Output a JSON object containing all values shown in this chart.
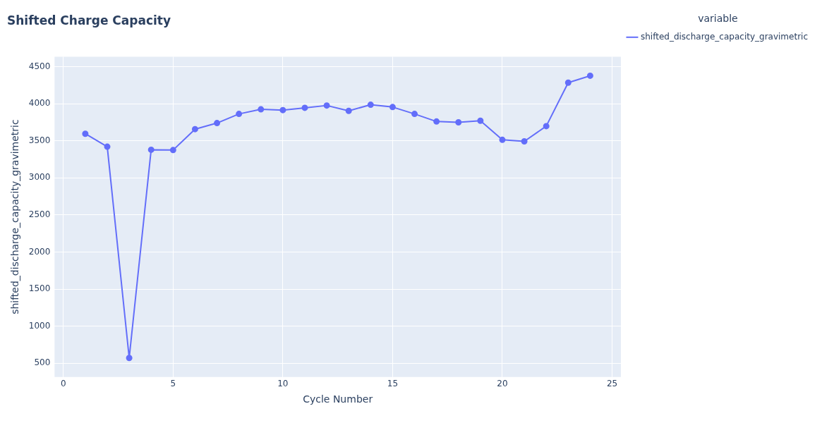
{
  "chart_data": {
    "type": "line",
    "title": "Shifted Charge Capacity",
    "xlabel": "Cycle Number",
    "ylabel": "shifted_discharge_capacity_gravimetric",
    "legend_title": "variable",
    "x": [
      1,
      2,
      3,
      4,
      5,
      6,
      7,
      8,
      9,
      10,
      11,
      12,
      13,
      14,
      15,
      16,
      17,
      18,
      19,
      20,
      21,
      22,
      23,
      24
    ],
    "series": [
      {
        "name": "shifted_discharge_capacity_gravimetric",
        "color": "#636efa",
        "values": [
          3595,
          3420,
          572,
          3379,
          3375,
          3657,
          3739,
          3862,
          3924,
          3914,
          3945,
          3976,
          3904,
          3986,
          3955,
          3862,
          3760,
          3749,
          3770,
          3513,
          3492,
          3698,
          4284,
          4377
        ]
      }
    ],
    "xlim": [
      -0.4,
      25.4
    ],
    "ylim": [
      315,
      4634
    ],
    "xticks": [
      0,
      5,
      10,
      15,
      20,
      25
    ],
    "yticks": [
      500,
      1000,
      1500,
      2000,
      2500,
      3000,
      3500,
      4000,
      4500
    ],
    "grid": true,
    "legend": "top right",
    "marker": "circle",
    "line_style": "solid"
  }
}
